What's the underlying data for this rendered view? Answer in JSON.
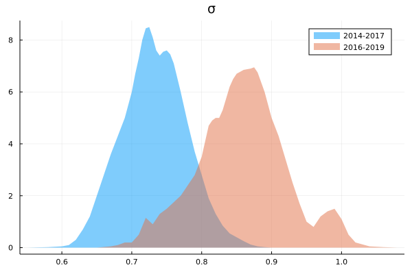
{
  "chart_data": {
    "type": "area",
    "title": "σ",
    "xlabel": "",
    "ylabel": "",
    "xlim": [
      0.54,
      1.09
    ],
    "ylim": [
      -0.25,
      8.75
    ],
    "xticks": [
      0.6,
      0.7,
      0.8,
      0.9,
      1.0
    ],
    "xtick_labels": [
      "0.6",
      "0.7",
      "0.8",
      "0.9",
      "1.0"
    ],
    "yticks": [
      0,
      2,
      4,
      6,
      8
    ],
    "ytick_labels": [
      "0",
      "2",
      "4",
      "6",
      "8"
    ],
    "grid": true,
    "legend_position": "top-right",
    "series": [
      {
        "name": "2014-2017",
        "color": "#009AF9",
        "opacity": 0.5,
        "x": [
          0.55,
          0.58,
          0.6,
          0.61,
          0.62,
          0.63,
          0.64,
          0.65,
          0.66,
          0.67,
          0.68,
          0.69,
          0.7,
          0.705,
          0.71,
          0.715,
          0.72,
          0.725,
          0.73,
          0.735,
          0.74,
          0.745,
          0.75,
          0.755,
          0.76,
          0.77,
          0.78,
          0.79,
          0.8,
          0.81,
          0.82,
          0.83,
          0.84,
          0.85,
          0.86,
          0.87,
          0.88,
          0.89,
          0.9
        ],
        "y": [
          0.0,
          0.02,
          0.05,
          0.1,
          0.3,
          0.7,
          1.2,
          2.0,
          2.8,
          3.6,
          4.3,
          5.0,
          6.0,
          6.7,
          7.3,
          8.0,
          8.45,
          8.5,
          8.1,
          7.6,
          7.4,
          7.55,
          7.6,
          7.45,
          7.1,
          6.0,
          4.8,
          3.7,
          2.8,
          1.9,
          1.3,
          0.85,
          0.55,
          0.4,
          0.25,
          0.12,
          0.05,
          0.02,
          0.0
        ]
      },
      {
        "name": "2016-2019",
        "color": "#E26F46",
        "opacity": 0.5,
        "x": [
          0.65,
          0.67,
          0.68,
          0.69,
          0.7,
          0.71,
          0.72,
          0.73,
          0.74,
          0.75,
          0.76,
          0.77,
          0.78,
          0.79,
          0.8,
          0.805,
          0.81,
          0.815,
          0.82,
          0.825,
          0.83,
          0.84,
          0.845,
          0.85,
          0.86,
          0.87,
          0.875,
          0.88,
          0.89,
          0.9,
          0.91,
          0.92,
          0.93,
          0.94,
          0.95,
          0.96,
          0.97,
          0.98,
          0.99,
          1.0,
          1.01,
          1.02,
          1.04,
          1.06,
          1.08
        ],
        "y": [
          0.0,
          0.05,
          0.1,
          0.2,
          0.2,
          0.5,
          1.15,
          0.9,
          1.3,
          1.5,
          1.75,
          2.0,
          2.4,
          2.8,
          3.5,
          4.1,
          4.7,
          4.9,
          5.0,
          5.0,
          5.3,
          6.2,
          6.5,
          6.7,
          6.85,
          6.9,
          6.95,
          6.75,
          6.0,
          5.0,
          4.3,
          3.4,
          2.5,
          1.7,
          1.0,
          0.8,
          1.2,
          1.4,
          1.5,
          1.1,
          0.5,
          0.2,
          0.05,
          0.02,
          0.0
        ]
      }
    ]
  }
}
